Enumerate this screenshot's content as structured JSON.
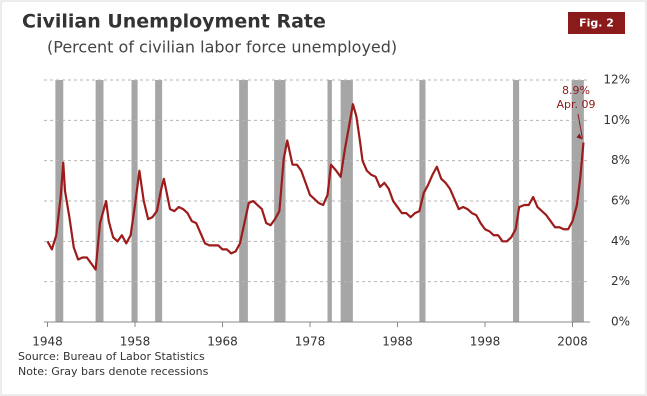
{
  "chart_data": {
    "type": "line",
    "title": "Civilian Unemployment Rate",
    "subtitle": "(Percent of civilian labor force unemployed)",
    "badge": "Fig. 2",
    "source": "Source: Bureau of Labor Statistics",
    "note": "Note:  Gray bars denote recessions",
    "annotations": [
      "8.9%",
      "Apr. 09"
    ],
    "color": "#9e1b1b",
    "recession_color": "#a6a6a6",
    "grid": true,
    "xlim": [
      1947.6,
      2010
    ],
    "xticks": [
      1948,
      1958,
      1968,
      1978,
      1988,
      1998,
      2008
    ],
    "ylim": [
      0,
      12
    ],
    "yticks": [
      {
        "value": 0,
        "label": "0%"
      },
      {
        "value": 2,
        "label": "2%"
      },
      {
        "value": 4,
        "label": "4%"
      },
      {
        "value": 6,
        "label": "6%"
      },
      {
        "value": 8,
        "label": "8%"
      },
      {
        "value": 10,
        "label": "10%"
      },
      {
        "value": 12,
        "label": "12%"
      }
    ],
    "recessions": [
      [
        1948.9,
        1949.8
      ],
      [
        1953.5,
        1954.4
      ],
      [
        1957.6,
        1958.3
      ],
      [
        1960.3,
        1961.1
      ],
      [
        1969.9,
        1970.9
      ],
      [
        1973.9,
        1975.2
      ],
      [
        1980.0,
        1980.5
      ],
      [
        1981.5,
        1982.9
      ],
      [
        1990.5,
        1991.2
      ],
      [
        2001.2,
        2001.9
      ],
      [
        2007.9,
        2009.3
      ]
    ],
    "x": [
      1948.0,
      1948.5,
      1949.0,
      1949.5,
      1949.8,
      1950.0,
      1950.5,
      1951.0,
      1951.5,
      1952.0,
      1952.5,
      1953.0,
      1953.5,
      1954.0,
      1954.7,
      1955.0,
      1955.5,
      1956.0,
      1956.5,
      1957.0,
      1957.5,
      1958.0,
      1958.5,
      1959.0,
      1959.5,
      1960.0,
      1960.5,
      1961.0,
      1961.3,
      1962.0,
      1962.5,
      1963.0,
      1963.5,
      1964.0,
      1964.5,
      1965.0,
      1965.5,
      1966.0,
      1966.5,
      1967.0,
      1967.5,
      1968.0,
      1968.5,
      1969.0,
      1969.5,
      1970.0,
      1970.5,
      1971.0,
      1971.5,
      1972.0,
      1972.5,
      1973.0,
      1973.5,
      1974.0,
      1974.5,
      1975.0,
      1975.4,
      1976.0,
      1976.5,
      1977.0,
      1977.5,
      1978.0,
      1978.5,
      1979.0,
      1979.5,
      1980.0,
      1980.4,
      1981.0,
      1981.5,
      1982.0,
      1982.5,
      1982.9,
      1983.3,
      1983.7,
      1984.0,
      1984.5,
      1985.0,
      1985.5,
      1986.0,
      1986.5,
      1987.0,
      1987.5,
      1988.0,
      1988.5,
      1989.0,
      1989.5,
      1990.0,
      1990.5,
      1991.0,
      1991.5,
      1992.0,
      1992.5,
      1993.0,
      1993.5,
      1994.0,
      1994.5,
      1995.0,
      1995.5,
      1996.0,
      1996.5,
      1997.0,
      1997.5,
      1998.0,
      1998.5,
      1999.0,
      1999.5,
      2000.0,
      2000.5,
      2001.0,
      2001.5,
      2001.9,
      2002.5,
      2003.0,
      2003.5,
      2004.0,
      2004.5,
      2005.0,
      2005.5,
      2006.0,
      2006.5,
      2007.0,
      2007.5,
      2008.0,
      2008.5,
      2008.9,
      2009.25
    ],
    "values": [
      4.0,
      3.6,
      4.3,
      6.2,
      7.9,
      6.5,
      5.2,
      3.7,
      3.1,
      3.2,
      3.2,
      2.9,
      2.6,
      4.9,
      6.0,
      5.0,
      4.2,
      4.0,
      4.3,
      3.9,
      4.3,
      5.8,
      7.5,
      6.0,
      5.1,
      5.2,
      5.5,
      6.6,
      7.1,
      5.6,
      5.5,
      5.7,
      5.6,
      5.4,
      5.0,
      4.9,
      4.4,
      3.9,
      3.8,
      3.8,
      3.8,
      3.6,
      3.6,
      3.4,
      3.5,
      3.9,
      4.9,
      5.9,
      6.0,
      5.8,
      5.6,
      4.9,
      4.8,
      5.1,
      5.5,
      8.1,
      9.0,
      7.8,
      7.8,
      7.5,
      6.9,
      6.3,
      6.1,
      5.9,
      5.8,
      6.3,
      7.8,
      7.5,
      7.2,
      8.6,
      9.8,
      10.8,
      10.2,
      9.0,
      8.0,
      7.5,
      7.3,
      7.2,
      6.7,
      6.9,
      6.6,
      6.0,
      5.7,
      5.4,
      5.4,
      5.2,
      5.4,
      5.5,
      6.4,
      6.8,
      7.3,
      7.7,
      7.1,
      6.9,
      6.6,
      6.1,
      5.6,
      5.7,
      5.6,
      5.4,
      5.3,
      4.9,
      4.6,
      4.5,
      4.3,
      4.3,
      4.0,
      4.0,
      4.2,
      4.6,
      5.7,
      5.8,
      5.8,
      6.2,
      5.7,
      5.5,
      5.3,
      5.0,
      4.7,
      4.7,
      4.6,
      4.6,
      5.0,
      5.8,
      7.2,
      8.9
    ]
  }
}
